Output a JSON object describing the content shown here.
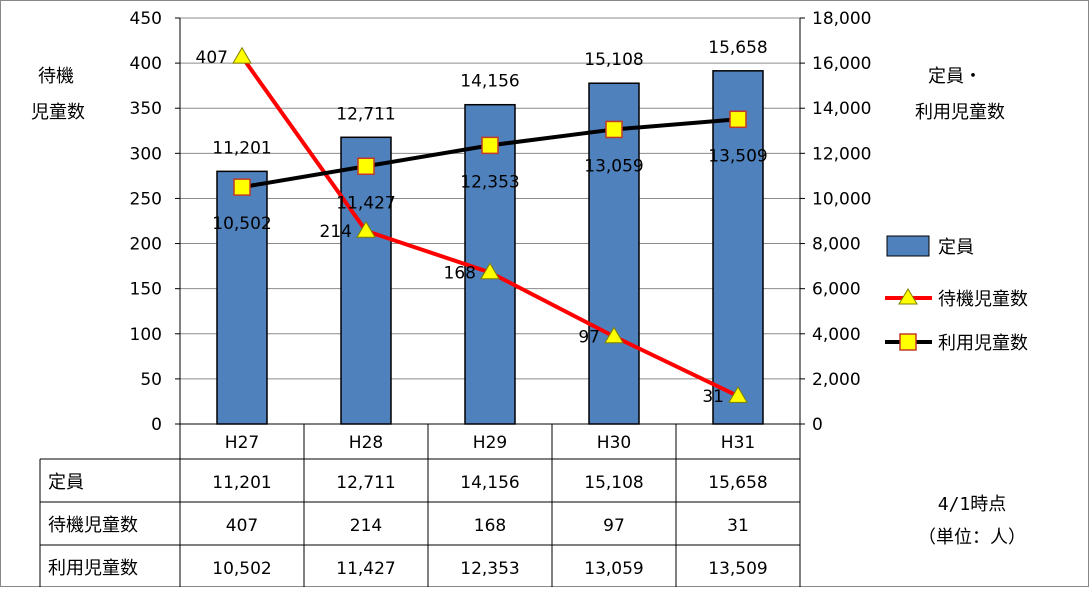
{
  "chart_data": {
    "type": "bar",
    "categories": [
      "H27",
      "H28",
      "H29",
      "H30",
      "H31"
    ],
    "y_left": {
      "label": [
        "待機",
        "児童数"
      ],
      "range": [
        0,
        450
      ],
      "ticks": [
        0,
        50,
        100,
        150,
        200,
        250,
        300,
        350,
        400,
        450
      ],
      "tick_labels": [
        "0",
        "50",
        "100",
        "150",
        "200",
        "250",
        "300",
        "350",
        "400",
        "450"
      ]
    },
    "y_right": {
      "label": [
        "定員・",
        "利用児童数"
      ],
      "range": [
        0,
        18000
      ],
      "ticks": [
        0,
        2000,
        4000,
        6000,
        8000,
        10000,
        12000,
        14000,
        16000,
        18000
      ],
      "tick_labels": [
        "0",
        "2,000",
        "4,000",
        "6,000",
        "8,000",
        "10,000",
        "12,000",
        "14,000",
        "16,000",
        "18,000"
      ]
    },
    "series": [
      {
        "name": "定員",
        "kind": "bar",
        "axis": "right",
        "color": "#4f81bd",
        "values": [
          11201,
          12711,
          14156,
          15108,
          15658
        ],
        "labels": [
          "11,201",
          "12,711",
          "14,156",
          "15,108",
          "15,658"
        ]
      },
      {
        "name": "待機児童数",
        "kind": "line",
        "axis": "left",
        "color": "#ff0000",
        "marker": "triangle",
        "marker_color": "#ffff00",
        "values": [
          407,
          214,
          168,
          97,
          31
        ],
        "labels": [
          "407",
          "214",
          "168",
          "97",
          "31"
        ]
      },
      {
        "name": "利用児童数",
        "kind": "line",
        "axis": "right",
        "color": "#000000",
        "marker": "square",
        "marker_color": "#ffff00",
        "values": [
          10502,
          11427,
          12353,
          13059,
          13509
        ],
        "labels": [
          "10,502",
          "11,427",
          "12,353",
          "13,059",
          "13,509"
        ]
      }
    ],
    "grid": true,
    "legend_position": "right",
    "table": {
      "rows": [
        {
          "header": "定員",
          "cells": [
            "11,201",
            "12,711",
            "14,156",
            "15,108",
            "15,658"
          ]
        },
        {
          "header": "待機児童数",
          "cells": [
            "407",
            "214",
            "168",
            "97",
            "31"
          ]
        },
        {
          "header": "利用児童数",
          "cells": [
            "10,502",
            "11,427",
            "12,353",
            "13,059",
            "13,509"
          ]
        }
      ]
    },
    "note": [
      "4/1時点",
      "（単位：人）"
    ]
  }
}
